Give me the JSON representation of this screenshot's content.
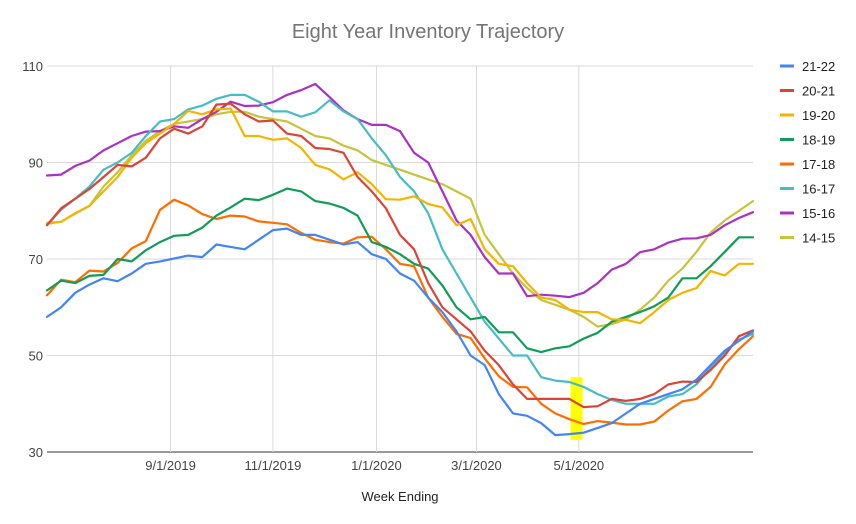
{
  "chart_data": {
    "type": "line",
    "title": "Eight Year Inventory Trajectory",
    "xlabel": "Week Ending",
    "ylabel": "",
    "ylim": [
      30,
      110
    ],
    "yticks": [
      30,
      50,
      70,
      90,
      110
    ],
    "xlim": [
      0,
      60
    ],
    "xticks": [
      {
        "label": "9/1/2019",
        "x": 10.5
      },
      {
        "label": "11/1/2019",
        "x": 19.2
      },
      {
        "label": "1/1/2020",
        "x": 28.0
      },
      {
        "label": "3/1/2020",
        "x": 36.5
      },
      {
        "label": "5/1/2020",
        "x": 45.2
      }
    ],
    "grid": true,
    "legend_position": "right",
    "highlight": {
      "x": 45.0,
      "y_from": 32.5,
      "y_to": 45.5,
      "color": "#ffff00"
    },
    "series": [
      {
        "name": "21-22",
        "color": "#4285f4",
        "values": [
          58,
          60,
          63,
          64.7,
          66,
          65.4,
          67,
          69,
          69.5,
          70.1,
          70.7,
          70.4,
          73,
          72.5,
          72,
          74,
          76,
          76.3,
          75,
          75,
          74,
          73,
          73.5,
          71,
          70,
          67,
          65.5,
          62,
          59,
          55,
          50,
          48,
          42,
          38,
          37.5,
          36,
          33.5,
          33.7,
          34,
          35,
          36,
          38,
          40,
          41,
          42,
          43,
          45,
          48,
          51,
          53,
          55
        ]
      },
      {
        "name": "20-21",
        "color": "#db4437",
        "values": [
          77,
          80.5,
          82.5,
          84.5,
          87,
          89.5,
          89.2,
          91,
          95,
          97,
          96,
          97.5,
          102,
          102.2,
          100,
          98.5,
          98.7,
          96,
          95.5,
          93,
          92.8,
          92,
          87,
          84,
          80.5,
          75,
          72,
          65,
          60,
          57.5,
          55,
          51,
          48,
          44,
          41,
          41,
          41,
          41,
          39.3,
          39.5,
          41,
          40.6,
          41,
          42,
          44,
          44.6,
          44.5,
          47,
          50,
          54,
          55.2
        ]
      },
      {
        "name": "19-20",
        "color": "#f4b400",
        "values": [
          77.3,
          77.7,
          79.5,
          81,
          84,
          87,
          91,
          94,
          96,
          98,
          100.7,
          100,
          101,
          101.2,
          95.5,
          95.5,
          94.7,
          95,
          93,
          89.5,
          88.6,
          86.5,
          88,
          85.5,
          82.4,
          82.3,
          83,
          81.4,
          80.7,
          77,
          78.3,
          72,
          69,
          68.5,
          65,
          62,
          61.5,
          59.5,
          59,
          59,
          57.5,
          57.4,
          56.7,
          59,
          61.5,
          63,
          64,
          67.5,
          66.6,
          69,
          69
        ]
      },
      {
        "name": "18-19",
        "color": "#0f9d58",
        "values": [
          63.5,
          65.5,
          65,
          66.5,
          66.7,
          70,
          69.5,
          71.8,
          73.5,
          74.8,
          75,
          76.5,
          79,
          80.7,
          82.5,
          82.2,
          83.3,
          84.6,
          84,
          82,
          81.5,
          80.6,
          79,
          73.5,
          72.5,
          71,
          69,
          68,
          64.5,
          60,
          57.5,
          58,
          54.8,
          54.8,
          51.5,
          50.7,
          51.5,
          51.9,
          53.5,
          54.7,
          57,
          58,
          59,
          60.2,
          62,
          66,
          66,
          68.5,
          71.5,
          74.5,
          74.5
        ]
      },
      {
        "name": "17-18",
        "color": "#ff6d01",
        "values": [
          62.5,
          65.7,
          65.2,
          67.6,
          67.4,
          69.2,
          72.2,
          73.7,
          80.2,
          82.3,
          81.1,
          79.3,
          78.3,
          79,
          78.8,
          77.8,
          77.5,
          77.2,
          75.4,
          74,
          73.5,
          73.2,
          74.5,
          74.6,
          72,
          69,
          68.5,
          62,
          58,
          54.5,
          53.6,
          49.4,
          45.7,
          43.5,
          43.4,
          40,
          38,
          36.8,
          35.8,
          36.4,
          36.1,
          35.7,
          35.7,
          36.3,
          38.6,
          40.5,
          41,
          43.5,
          48.2,
          51.3,
          54
        ]
      },
      {
        "name": "16-17",
        "color": "#46bdc6",
        "values": [
          77,
          80.2,
          82.5,
          85,
          88.5,
          90,
          92,
          95.5,
          98.5,
          99,
          101,
          101.8,
          103.2,
          104,
          104,
          102.6,
          100.6,
          100.6,
          99.5,
          100.4,
          102.9,
          100.6,
          99,
          95,
          91.5,
          87,
          84,
          79.5,
          72,
          67,
          62,
          57,
          53.5,
          50,
          50,
          45.5,
          44.8,
          44.5,
          43.5,
          42,
          40.8,
          40,
          40,
          40,
          41.5,
          42,
          44,
          47.5,
          50.5,
          53.3,
          54.5
        ]
      },
      {
        "name": "15-16",
        "color": "#ab30c4",
        "values": [
          87.3,
          87.5,
          89.3,
          90.4,
          92.5,
          94,
          95.5,
          96.4,
          96.5,
          97.5,
          97.2,
          99,
          100.5,
          102.6,
          101.7,
          101.8,
          102.5,
          104,
          105,
          106.3,
          103.6,
          100.8,
          99,
          97.8,
          97.8,
          96.5,
          92,
          90,
          84,
          78,
          75,
          70.4,
          67,
          67,
          62.3,
          62.6,
          62.4,
          62.1,
          63,
          65,
          67.8,
          69,
          71.4,
          72,
          73.4,
          74.2,
          74.3,
          75,
          77,
          78.5,
          79.7
        ]
      },
      {
        "name": "14-15",
        "color": "#c7c43c",
        "values": [
          77.5,
          77.7,
          79.4,
          81,
          85,
          88,
          91.5,
          94.5,
          96.5,
          98,
          98.5,
          99,
          100,
          100.5,
          100.5,
          99.5,
          99,
          98.5,
          97,
          95.5,
          95,
          93.5,
          92.5,
          90.5,
          89.5,
          88.5,
          87.5,
          86.5,
          85.5,
          84,
          82.5,
          75,
          71,
          67,
          64,
          61.5,
          60.5,
          59.5,
          58,
          56,
          56.5,
          57.5,
          59.5,
          62,
          65.5,
          68,
          71.5,
          75.5,
          78,
          80,
          82
        ]
      }
    ]
  }
}
